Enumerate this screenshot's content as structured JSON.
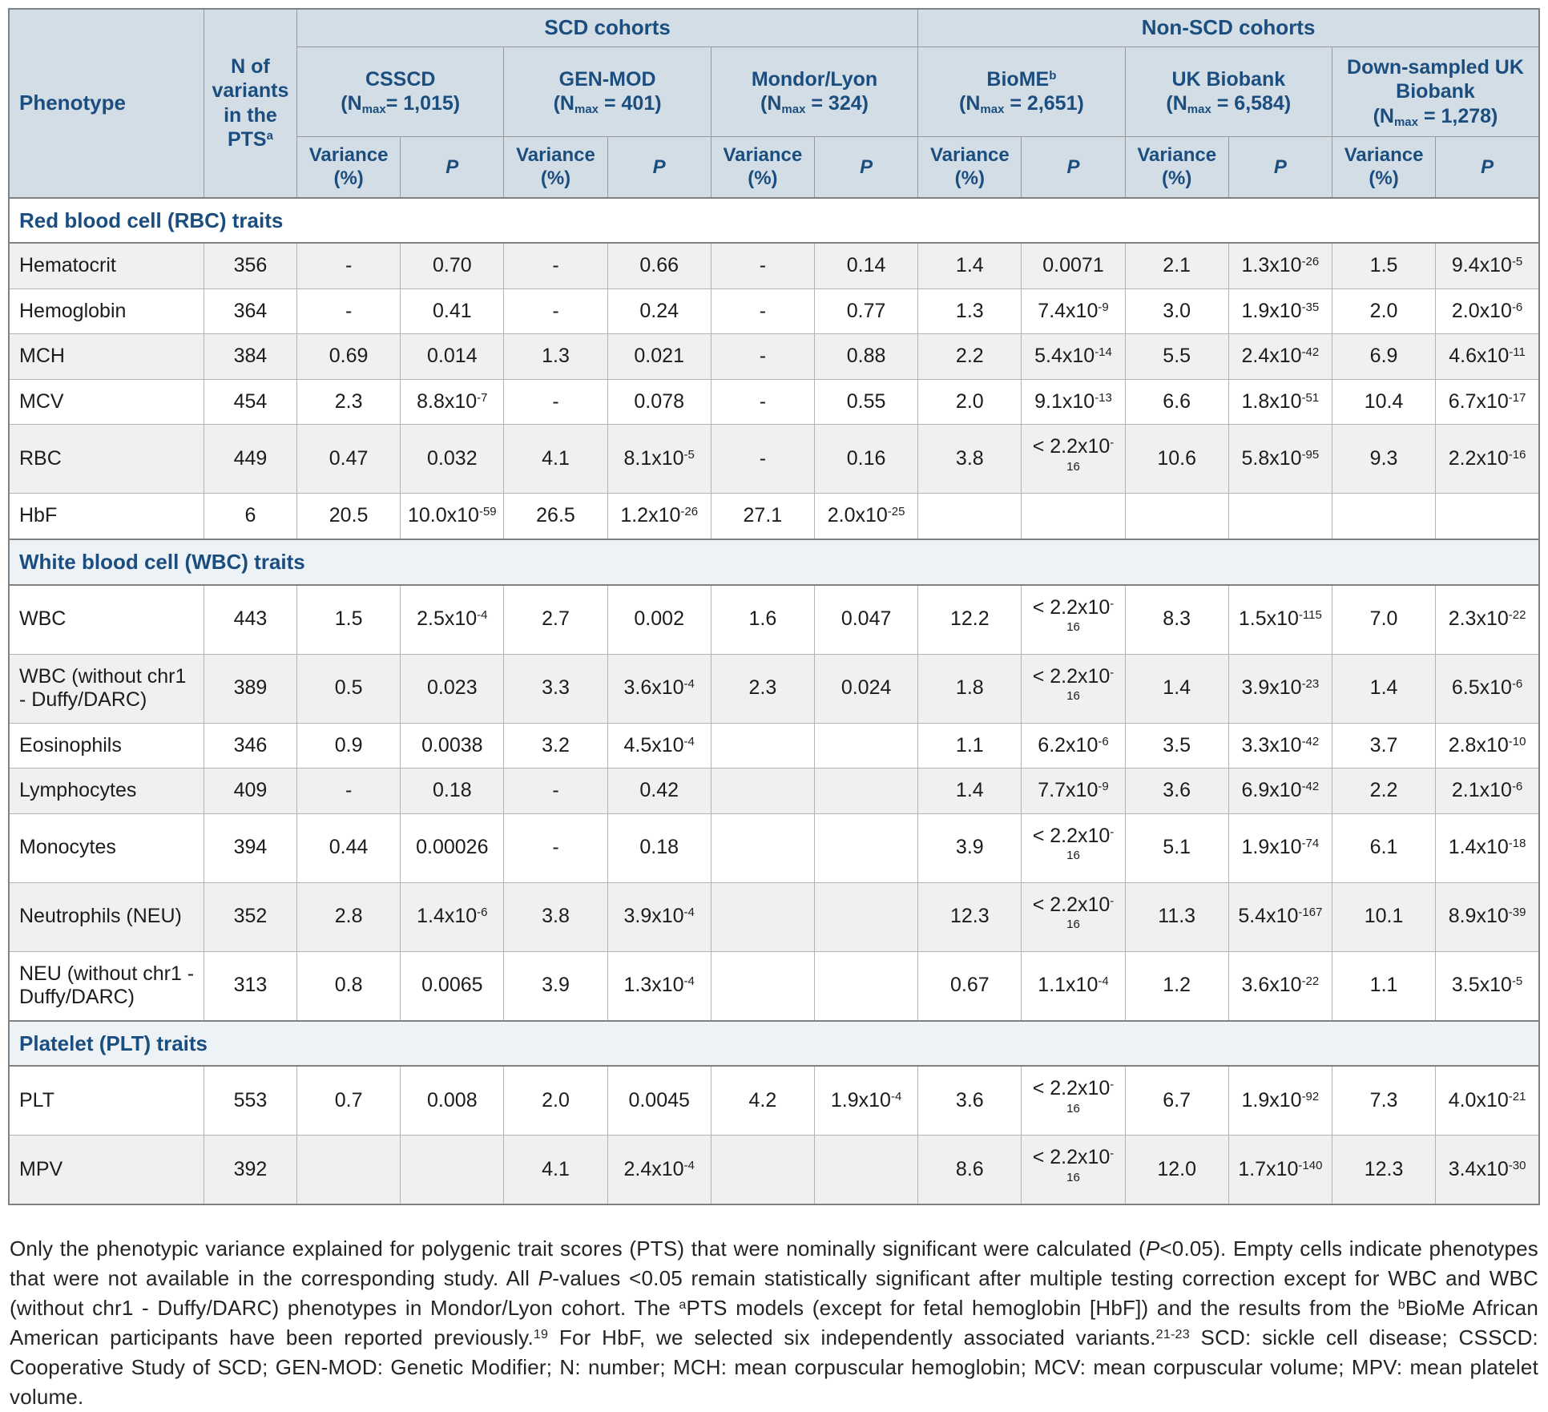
{
  "colors": {
    "accent_blue": "#1b4e7e",
    "header_background": "#d3dde6",
    "row_stripe_gray": "#f0f0f0",
    "section_row_tint": "#edf2f7"
  },
  "table": {
    "header": {
      "phenotype_label": "Phenotype",
      "n_variants": {
        "text": "N of variants in the PTS",
        "sup": "a"
      },
      "groups": [
        {
          "label": "SCD cohorts",
          "cohort_span": 3
        },
        {
          "label": "Non-SCD cohorts",
          "cohort_span": 3
        }
      ],
      "cohorts": [
        {
          "name": "CSSCD",
          "sup": "",
          "nmax_rest": "= 1,015"
        },
        {
          "name": "GEN-MOD",
          "sup": "",
          "nmax_rest": " = 401"
        },
        {
          "name": "Mondor/Lyon",
          "sup": "",
          "nmax_rest": " = 324"
        },
        {
          "name": "BioME",
          "sup": "b",
          "nmax_rest": " = 2,651"
        },
        {
          "name": "UK Biobank",
          "sup": "",
          "nmax_rest": " = 6,584"
        },
        {
          "name": "Down-sampled UK Biobank",
          "sup": "",
          "nmax_rest": " = 1,278"
        }
      ],
      "variance_label": "Variance (%)",
      "p_label": "P"
    },
    "sections": [
      {
        "title": "Red blood cell (RBC) traits",
        "rows": [
          {
            "phenotype": "Hematocrit",
            "n": "356",
            "values": [
              "-",
              "0.70",
              "-",
              "0.66",
              "-",
              "0.14",
              "1.4",
              "0.0071",
              "2.1",
              "1.3x10^-26",
              "1.5",
              "9.4x10^-5"
            ]
          },
          {
            "phenotype": "Hemoglobin",
            "n": "364",
            "values": [
              "-",
              "0.41",
              "-",
              "0.24",
              "-",
              "0.77",
              "1.3",
              "7.4x10^-9",
              "3.0",
              "1.9x10^-35",
              "2.0",
              "2.0x10^-6"
            ]
          },
          {
            "phenotype": "MCH",
            "n": "384",
            "values": [
              "0.69",
              "0.014",
              "1.3",
              "0.021",
              "-",
              "0.88",
              "2.2",
              "5.4x10^-14",
              "5.5",
              "2.4x10^-42",
              "6.9",
              "4.6x10^-11"
            ]
          },
          {
            "phenotype": "MCV",
            "n": "454",
            "values": [
              "2.3",
              "8.8x10^-7",
              "-",
              "0.078",
              "-",
              "0.55",
              "2.0",
              "9.1x10^-13",
              "6.6",
              "1.8x10^-51",
              "10.4",
              "6.7x10^-17"
            ]
          },
          {
            "phenotype": "RBC",
            "n": "449",
            "values": [
              "0.47",
              "0.032",
              "4.1",
              "8.1x10^-5",
              "-",
              "0.16",
              "3.8",
              "< 2.2x10^-16",
              "10.6",
              "5.8x10^-95",
              "9.3",
              "2.2x10^-16"
            ]
          },
          {
            "phenotype": "HbF",
            "n": "6",
            "values": [
              "20.5",
              "10.0x10^-59",
              "26.5",
              "1.2x10^-26",
              "27.1",
              "2.0x10^-25",
              "",
              "",
              "",
              "",
              "",
              ""
            ]
          }
        ]
      },
      {
        "title": "White blood cell (WBC) traits",
        "rows": [
          {
            "phenotype": "WBC",
            "n": "443",
            "values": [
              "1.5",
              "2.5x10^-4",
              "2.7",
              "0.002",
              "1.6",
              "0.047",
              "12.2",
              "< 2.2x10^-16",
              "8.3",
              "1.5x10^-115",
              "7.0",
              "2.3x10^-22"
            ]
          },
          {
            "phenotype": "WBC (without chr1 - Duffy/DARC)",
            "n": "389",
            "values": [
              "0.5",
              "0.023",
              "3.3",
              "3.6x10^-4",
              "2.3",
              "0.024",
              "1.8",
              "< 2.2x10^-16",
              "1.4",
              "3.9x10^-23",
              "1.4",
              "6.5x10^-6"
            ]
          },
          {
            "phenotype": "Eosinophils",
            "n": "346",
            "values": [
              "0.9",
              "0.0038",
              "3.2",
              "4.5x10^-4",
              "",
              "",
              "1.1",
              "6.2x10^-6",
              "3.5",
              "3.3x10^-42",
              "3.7",
              "2.8x10^-10"
            ]
          },
          {
            "phenotype": "Lymphocytes",
            "n": "409",
            "values": [
              "-",
              "0.18",
              "-",
              "0.42",
              "",
              "",
              "1.4",
              "7.7x10^-9",
              "3.6",
              "6.9x10^-42",
              "2.2",
              "2.1x10^-6"
            ]
          },
          {
            "phenotype": "Monocytes",
            "n": "394",
            "values": [
              "0.44",
              "0.00026",
              "-",
              "0.18",
              "",
              "",
              "3.9",
              "< 2.2x10^-16",
              "5.1",
              "1.9x10^-74",
              "6.1",
              "1.4x10^-18"
            ]
          },
          {
            "phenotype": "Neutrophils (NEU)",
            "n": "352",
            "values": [
              "2.8",
              "1.4x10^-6",
              "3.8",
              "3.9x10^-4",
              "",
              "",
              "12.3",
              "< 2.2x10^-16",
              "11.3",
              "5.4x10^-167",
              "10.1",
              "8.9x10^-39"
            ]
          },
          {
            "phenotype": "NEU (without chr1 - Duffy/DARC)",
            "n": "313",
            "values": [
              "0.8",
              "0.0065",
              "3.9",
              "1.3x10^-4",
              "",
              "",
              "0.67",
              "1.1x10^-4",
              "1.2",
              "3.6x10^-22",
              "1.1",
              "3.5x10^-5"
            ]
          }
        ]
      },
      {
        "title": "Platelet (PLT) traits",
        "rows": [
          {
            "phenotype": "PLT",
            "n": "553",
            "values": [
              "0.7",
              "0.008",
              "2.0",
              "0.0045",
              "4.2",
              "1.9x10^-4",
              "3.6",
              "< 2.2x10^-16",
              "6.7",
              "1.9x10^-92",
              "7.3",
              "4.0x10^-21"
            ]
          },
          {
            "phenotype": "MPV",
            "n": "392",
            "values": [
              "",
              "",
              "4.1",
              "2.4x10^-4",
              "",
              "",
              "8.6",
              "< 2.2x10^-16",
              "12.0",
              "1.7x10^-140",
              "12.3",
              "3.4x10^-30"
            ]
          }
        ]
      }
    ]
  },
  "footnote": {
    "segments": [
      {
        "text": "Only the phenotypic variance explained for polygenic trait scores (PTS) that were nominally significant were calculated (",
        "style": "normal"
      },
      {
        "text": "P",
        "style": "italic"
      },
      {
        "text": "<0.05). Empty cells indicate phenotypes that were not available in the corresponding study. All ",
        "style": "normal"
      },
      {
        "text": "P",
        "style": "italic"
      },
      {
        "text": "-values <0.05 remain statistically significant after multiple testing correction except for WBC and WBC (without chr1 - Duffy/DARC) phenotypes in Mondor/Lyon cohort. The ",
        "style": "normal"
      },
      {
        "text": "a",
        "style": "sup"
      },
      {
        "text": "PTS models (except for fetal hemoglobin [HbF]) and the results from the ",
        "style": "normal"
      },
      {
        "text": "b",
        "style": "sup"
      },
      {
        "text": "BioMe African American participants have been reported previously.",
        "style": "normal"
      },
      {
        "text": "19",
        "style": "sup"
      },
      {
        "text": " For HbF, we selected six independently associated variants.",
        "style": "normal"
      },
      {
        "text": "21-23",
        "style": "sup"
      },
      {
        "text": " SCD: sickle cell disease; CSSCD: Cooperative Study of SCD; GEN-MOD: Genetic Modifier; N: number; MCH: mean corpuscular hemoglobin; MCV: mean corpuscular volume; MPV: mean platelet volume.",
        "style": "normal"
      }
    ]
  }
}
